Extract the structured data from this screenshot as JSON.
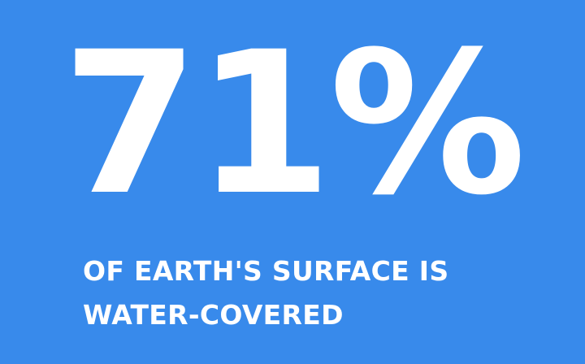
{
  "stat": {
    "value": "71%"
  },
  "caption": {
    "line1": "OF EARTH'S SURFACE IS",
    "line2": "WATER-COVERED"
  },
  "colors": {
    "background": "#388AEB",
    "text": "#FFFFFF"
  }
}
